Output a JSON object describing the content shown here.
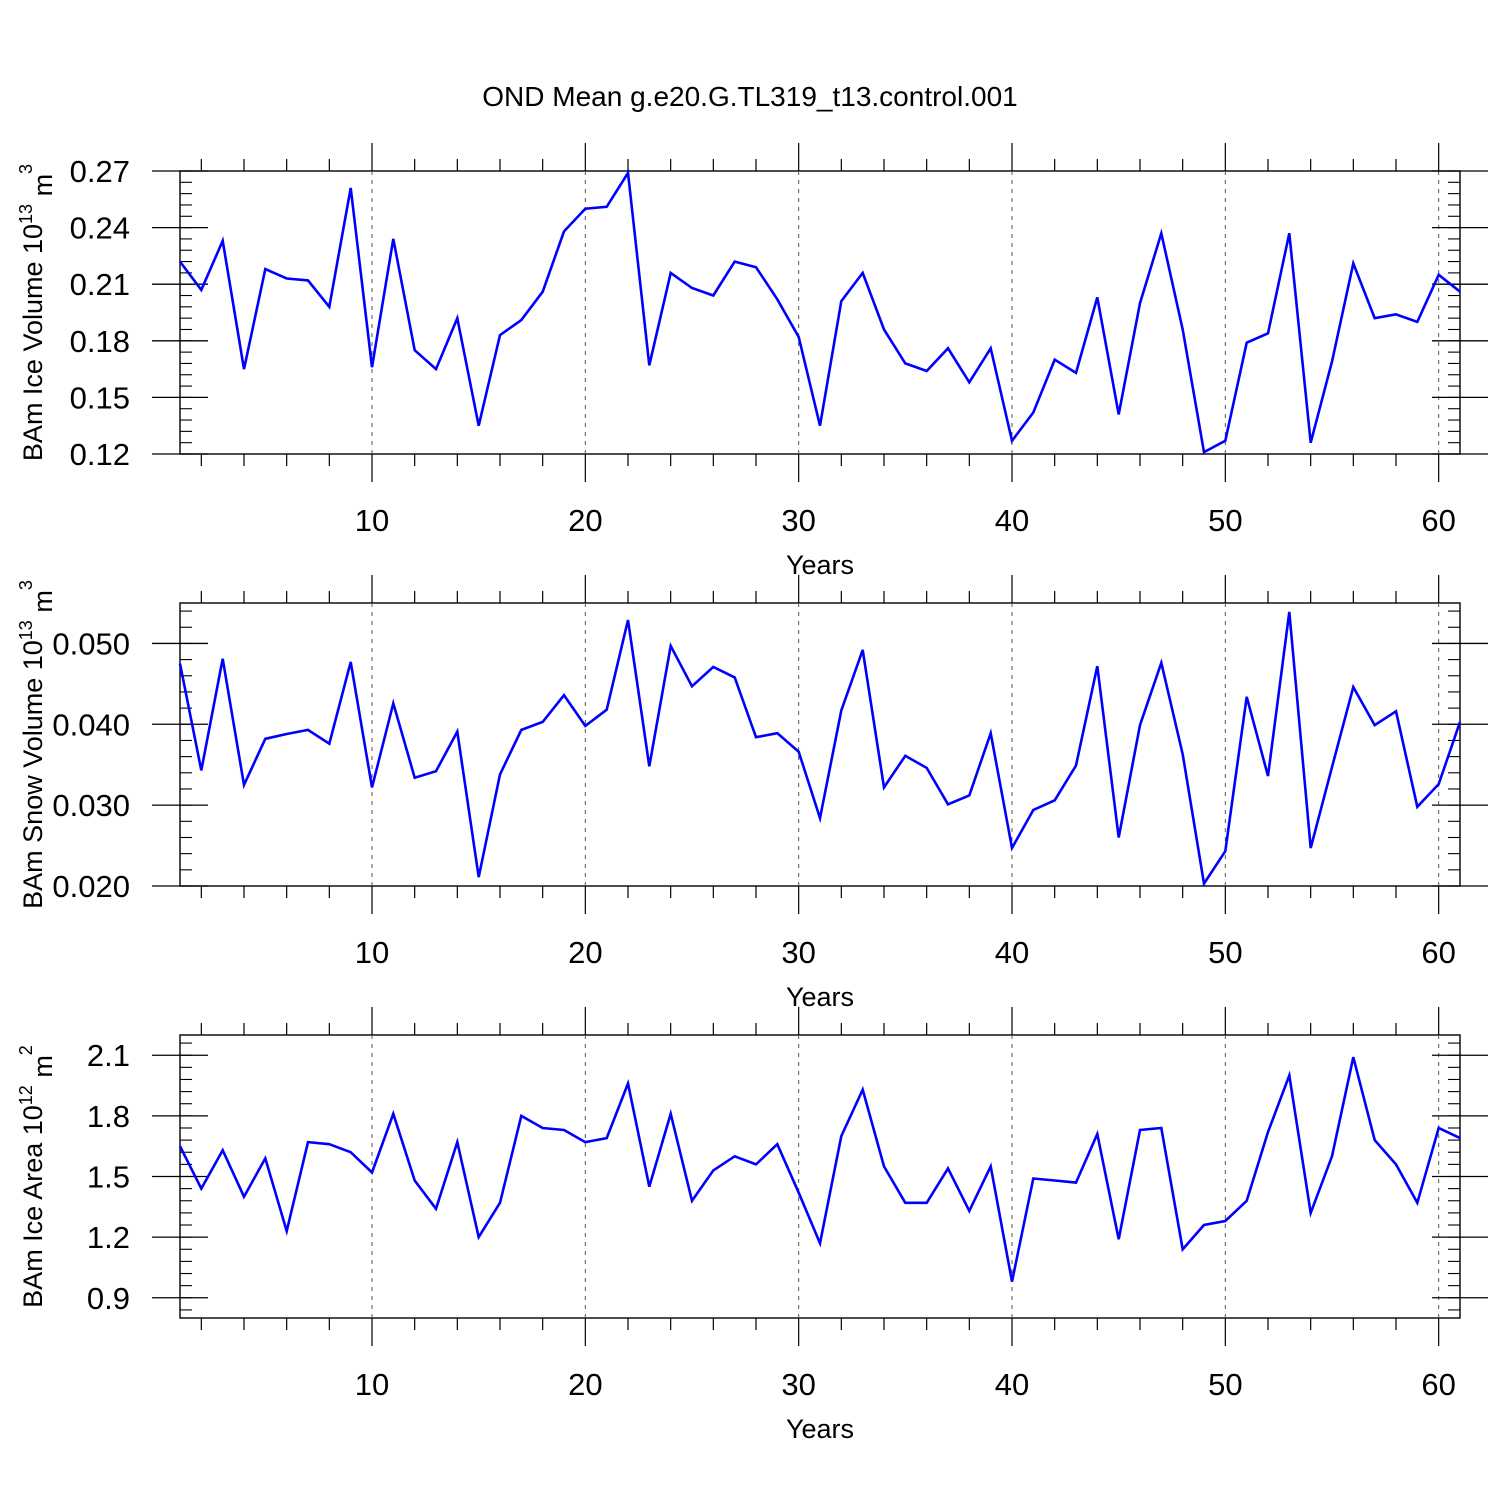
{
  "title": "OND Mean g.e20.G.TL319_t13.control.001",
  "line_color": "#0000ff",
  "chart_data": [
    {
      "type": "line",
      "ylabel": "BAm Ice Volume 10",
      "ylabel_sup": "13",
      "ylabel_unit": "m",
      "ylabel_unit_sup": "3",
      "xlabel": "Years",
      "xlim": [
        1,
        61
      ],
      "ylim": [
        0.12,
        0.27
      ],
      "yticks": [
        0.12,
        0.15,
        0.18,
        0.21,
        0.24,
        0.27
      ],
      "ytick_labels": [
        "0.12",
        "0.15",
        "0.18",
        "0.21",
        "0.24",
        "0.27"
      ],
      "xticks": [
        10,
        20,
        30,
        40,
        50,
        60
      ],
      "xtick_labels": [
        "10",
        "20",
        "30",
        "40",
        "50",
        "60"
      ],
      "x": [
        1,
        2,
        3,
        4,
        5,
        6,
        7,
        8,
        9,
        10,
        11,
        12,
        13,
        14,
        15,
        16,
        17,
        18,
        19,
        20,
        21,
        22,
        23,
        24,
        25,
        26,
        27,
        28,
        29,
        30,
        31,
        32,
        33,
        34,
        35,
        36,
        37,
        38,
        39,
        40,
        41,
        42,
        43,
        44,
        45,
        46,
        47,
        48,
        49,
        50,
        51,
        52,
        53,
        54,
        55,
        56,
        57,
        58,
        59,
        60,
        61
      ],
      "values": [
        0.222,
        0.207,
        0.233,
        0.165,
        0.218,
        0.213,
        0.212,
        0.198,
        0.261,
        0.166,
        0.234,
        0.175,
        0.165,
        0.192,
        0.135,
        0.183,
        0.191,
        0.206,
        0.238,
        0.25,
        0.251,
        0.269,
        0.167,
        0.216,
        0.208,
        0.204,
        0.222,
        0.219,
        0.202,
        0.182,
        0.135,
        0.201,
        0.216,
        0.186,
        0.168,
        0.164,
        0.176,
        0.158,
        0.176,
        0.127,
        0.142,
        0.17,
        0.163,
        0.203,
        0.141,
        0.2,
        0.237,
        0.186,
        0.121,
        0.127,
        0.179,
        0.184,
        0.237,
        0.126,
        0.169,
        0.221,
        0.192,
        0.194,
        0.19,
        0.215,
        0.206
      ]
    },
    {
      "type": "line",
      "ylabel": "BAm Snow Volume 10",
      "ylabel_sup": "13",
      "ylabel_unit": "m",
      "ylabel_unit_sup": "3",
      "xlabel": "Years",
      "xlim": [
        1,
        61
      ],
      "ylim": [
        0.02,
        0.055
      ],
      "yticks": [
        0.02,
        0.03,
        0.04,
        0.05
      ],
      "ytick_labels": [
        "0.020",
        "0.030",
        "0.040",
        "0.050"
      ],
      "xticks": [
        10,
        20,
        30,
        40,
        50,
        60
      ],
      "xtick_labels": [
        "10",
        "20",
        "30",
        "40",
        "50",
        "60"
      ],
      "x": [
        1,
        2,
        3,
        4,
        5,
        6,
        7,
        8,
        9,
        10,
        11,
        12,
        13,
        14,
        15,
        16,
        17,
        18,
        19,
        20,
        21,
        22,
        23,
        24,
        25,
        26,
        27,
        28,
        29,
        30,
        31,
        32,
        33,
        34,
        35,
        36,
        37,
        38,
        39,
        40,
        41,
        42,
        43,
        44,
        45,
        46,
        47,
        48,
        49,
        50,
        51,
        52,
        53,
        54,
        55,
        56,
        57,
        58,
        59,
        60,
        61
      ],
      "values": [
        0.0475,
        0.0343,
        0.0481,
        0.0325,
        0.0382,
        0.0388,
        0.0393,
        0.0376,
        0.0477,
        0.0322,
        0.0426,
        0.0334,
        0.0342,
        0.0391,
        0.0211,
        0.0338,
        0.0393,
        0.0403,
        0.0436,
        0.0398,
        0.0418,
        0.0529,
        0.0348,
        0.0497,
        0.0447,
        0.0471,
        0.0458,
        0.0384,
        0.0389,
        0.0366,
        0.0284,
        0.0417,
        0.0492,
        0.0322,
        0.0361,
        0.0346,
        0.0301,
        0.0312,
        0.0389,
        0.0247,
        0.0294,
        0.0306,
        0.0349,
        0.0472,
        0.026,
        0.0399,
        0.0476,
        0.0363,
        0.0203,
        0.0243,
        0.0434,
        0.0336,
        0.0539,
        0.0247,
        0.0347,
        0.0446,
        0.0399,
        0.0416,
        0.0298,
        0.0326,
        0.0403
      ]
    },
    {
      "type": "line",
      "ylabel": "BAm Ice Area 10",
      "ylabel_sup": "12",
      "ylabel_unit": "m",
      "ylabel_unit_sup": "2",
      "xlabel": "Years",
      "xlim": [
        1,
        61
      ],
      "ylim": [
        0.8,
        2.2
      ],
      "yticks": [
        0.9,
        1.2,
        1.5,
        1.8,
        2.1
      ],
      "ytick_labels": [
        "0.9",
        "1.2",
        "1.5",
        "1.8",
        "2.1"
      ],
      "xticks": [
        10,
        20,
        30,
        40,
        50,
        60
      ],
      "xtick_labels": [
        "10",
        "20",
        "30",
        "40",
        "50",
        "60"
      ],
      "x": [
        1,
        2,
        3,
        4,
        5,
        6,
        7,
        8,
        9,
        10,
        11,
        12,
        13,
        14,
        15,
        16,
        17,
        18,
        19,
        20,
        21,
        22,
        23,
        24,
        25,
        26,
        27,
        28,
        29,
        30,
        31,
        32,
        33,
        34,
        35,
        36,
        37,
        38,
        39,
        40,
        41,
        42,
        43,
        44,
        45,
        46,
        47,
        48,
        49,
        50,
        51,
        52,
        53,
        54,
        55,
        56,
        57,
        58,
        59,
        60,
        61
      ],
      "values": [
        1.65,
        1.44,
        1.63,
        1.4,
        1.59,
        1.23,
        1.67,
        1.66,
        1.62,
        1.52,
        1.81,
        1.48,
        1.34,
        1.67,
        1.2,
        1.37,
        1.8,
        1.74,
        1.73,
        1.67,
        1.69,
        1.96,
        1.45,
        1.81,
        1.38,
        1.53,
        1.6,
        1.56,
        1.66,
        1.42,
        1.17,
        1.7,
        1.93,
        1.55,
        1.37,
        1.37,
        1.54,
        1.33,
        1.55,
        0.98,
        1.49,
        1.48,
        1.47,
        1.71,
        1.19,
        1.73,
        1.74,
        1.14,
        1.26,
        1.28,
        1.38,
        1.72,
        2.0,
        1.32,
        1.6,
        2.09,
        1.68,
        1.56,
        1.37,
        1.74,
        1.69
      ]
    }
  ]
}
